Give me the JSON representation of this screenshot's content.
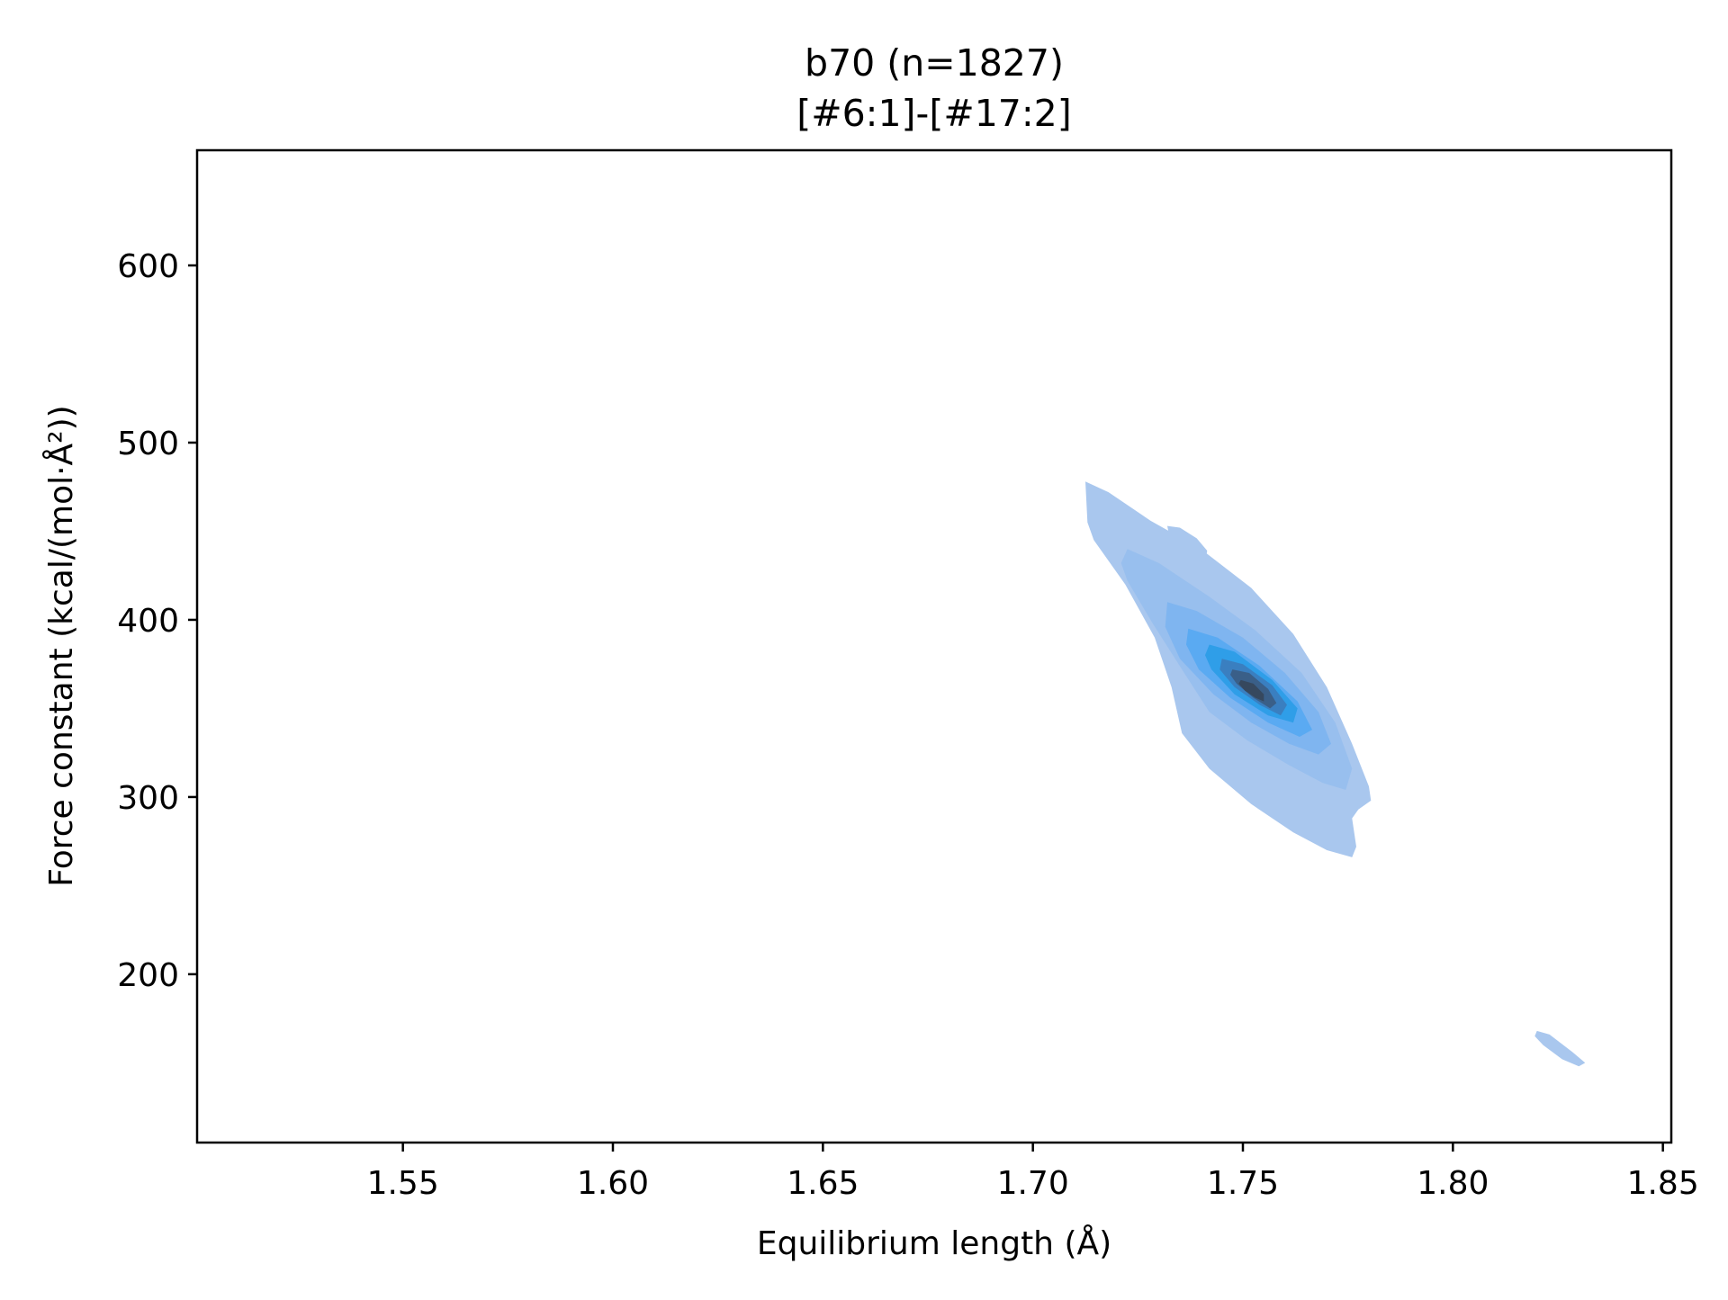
{
  "chart_data": {
    "type": "kde-contour",
    "title": "b70 (n=1827)",
    "subtitle": "[#6:1]-[#17:2]",
    "xlabel": "Equilibrium length (Å)",
    "ylabel": "Force constant (kcal/(mol·Å²))",
    "xlim": [
      1.501,
      1.852
    ],
    "ylim": [
      105,
      665
    ],
    "x_ticks": [
      {
        "value": 1.55,
        "label": "1.55"
      },
      {
        "value": 1.6,
        "label": "1.60"
      },
      {
        "value": 1.65,
        "label": "1.65"
      },
      {
        "value": 1.7,
        "label": "1.70"
      },
      {
        "value": 1.75,
        "label": "1.75"
      },
      {
        "value": 1.8,
        "label": "1.80"
      },
      {
        "value": 1.85,
        "label": "1.85"
      }
    ],
    "y_ticks": [
      {
        "value": 200,
        "label": "200"
      },
      {
        "value": 300,
        "label": "300"
      },
      {
        "value": 400,
        "label": "400"
      },
      {
        "value": 500,
        "label": "500"
      },
      {
        "value": 600,
        "label": "600"
      }
    ],
    "grid": false,
    "legend": "none",
    "peak": {
      "x": 1.752,
      "y": 362
    },
    "colors": {
      "level_1": "#a9c7ee",
      "level_2": "#98bfee",
      "level_3": "#7fb5f0",
      "level_4": "#5aaaf2",
      "level_5": "#2f9ee8",
      "level_6": "#3a7fc0",
      "level_7": "#3a5f88",
      "level_8": "#36485e"
    },
    "contours": [
      {
        "name": "main-cluster-outer",
        "level": 1,
        "points": [
          [
            1.7125,
            478
          ],
          [
            1.718,
            472
          ],
          [
            1.728,
            456
          ],
          [
            1.74,
            440
          ],
          [
            1.752,
            418
          ],
          [
            1.762,
            392
          ],
          [
            1.77,
            362
          ],
          [
            1.776,
            330
          ],
          [
            1.78,
            306
          ],
          [
            1.7805,
            298
          ],
          [
            1.7775,
            293
          ],
          [
            1.776,
            288
          ],
          [
            1.777,
            272
          ],
          [
            1.776,
            266
          ],
          [
            1.77,
            270
          ],
          [
            1.762,
            280
          ],
          [
            1.752,
            296
          ],
          [
            1.742,
            316
          ],
          [
            1.7355,
            336
          ],
          [
            1.733,
            362
          ],
          [
            1.729,
            390
          ],
          [
            1.722,
            420
          ],
          [
            1.7145,
            445
          ],
          [
            1.713,
            455
          ],
          [
            1.7125,
            478
          ]
        ]
      },
      {
        "name": "upper-blob",
        "level": 1,
        "points": [
          [
            1.732,
            453
          ],
          [
            1.735,
            452
          ],
          [
            1.739,
            446
          ],
          [
            1.7415,
            439
          ],
          [
            1.741,
            432
          ],
          [
            1.7385,
            434
          ],
          [
            1.735,
            441
          ],
          [
            1.7325,
            447
          ],
          [
            1.732,
            453
          ]
        ]
      },
      {
        "name": "lower-right-blob",
        "level": 1,
        "points": [
          [
            1.82,
            168
          ],
          [
            1.823,
            166
          ],
          [
            1.8285,
            156
          ],
          [
            1.8315,
            150
          ],
          [
            1.83,
            148
          ],
          [
            1.826,
            152
          ],
          [
            1.8215,
            160
          ],
          [
            1.8195,
            165
          ],
          [
            1.82,
            168
          ]
        ]
      },
      {
        "name": "main-cluster-level-2",
        "level": 2,
        "points": [
          [
            1.7225,
            440
          ],
          [
            1.73,
            432
          ],
          [
            1.742,
            413
          ],
          [
            1.753,
            394
          ],
          [
            1.764,
            370
          ],
          [
            1.772,
            342
          ],
          [
            1.776,
            316
          ],
          [
            1.7745,
            304
          ],
          [
            1.769,
            308
          ],
          [
            1.761,
            318
          ],
          [
            1.751,
            332
          ],
          [
            1.742,
            348
          ],
          [
            1.7355,
            372
          ],
          [
            1.7285,
            398
          ],
          [
            1.7225,
            422
          ],
          [
            1.721,
            432
          ],
          [
            1.7225,
            440
          ]
        ]
      },
      {
        "name": "main-cluster-level-3",
        "level": 3,
        "points": [
          [
            1.732,
            410
          ],
          [
            1.739,
            405
          ],
          [
            1.75,
            390
          ],
          [
            1.76,
            370
          ],
          [
            1.768,
            348
          ],
          [
            1.771,
            330
          ],
          [
            1.768,
            324
          ],
          [
            1.761,
            330
          ],
          [
            1.752,
            342
          ],
          [
            1.743,
            358
          ],
          [
            1.735,
            378
          ],
          [
            1.7315,
            396
          ],
          [
            1.732,
            410
          ]
        ]
      },
      {
        "name": "main-cluster-level-4",
        "level": 4,
        "points": [
          [
            1.737,
            395
          ],
          [
            1.744,
            390
          ],
          [
            1.754,
            374
          ],
          [
            1.763,
            354
          ],
          [
            1.7665,
            338
          ],
          [
            1.7635,
            334
          ],
          [
            1.756,
            342
          ],
          [
            1.747,
            356
          ],
          [
            1.7395,
            372
          ],
          [
            1.7365,
            386
          ],
          [
            1.737,
            395
          ]
        ]
      },
      {
        "name": "main-cluster-level-5",
        "level": 5,
        "points": [
          [
            1.742,
            386
          ],
          [
            1.748,
            382
          ],
          [
            1.757,
            366
          ],
          [
            1.763,
            350
          ],
          [
            1.762,
            342
          ],
          [
            1.756,
            346
          ],
          [
            1.748,
            358
          ],
          [
            1.7425,
            372
          ],
          [
            1.741,
            380
          ],
          [
            1.742,
            386
          ]
        ]
      },
      {
        "name": "main-cluster-level-6",
        "level": 6,
        "points": [
          [
            1.745,
            378
          ],
          [
            1.75,
            375
          ],
          [
            1.757,
            363
          ],
          [
            1.7605,
            352
          ],
          [
            1.759,
            346
          ],
          [
            1.754,
            352
          ],
          [
            1.748,
            362
          ],
          [
            1.7445,
            372
          ],
          [
            1.745,
            378
          ]
        ]
      },
      {
        "name": "main-cluster-level-7",
        "level": 7,
        "points": [
          [
            1.7475,
            372
          ],
          [
            1.7515,
            370
          ],
          [
            1.756,
            361
          ],
          [
            1.758,
            353
          ],
          [
            1.7565,
            350
          ],
          [
            1.7525,
            356
          ],
          [
            1.7485,
            364
          ],
          [
            1.747,
            369
          ],
          [
            1.7475,
            372
          ]
        ]
      },
      {
        "name": "main-cluster-level-8",
        "level": 8,
        "points": [
          [
            1.7495,
            366
          ],
          [
            1.7525,
            364
          ],
          [
            1.755,
            358
          ],
          [
            1.755,
            354
          ],
          [
            1.753,
            356
          ],
          [
            1.7505,
            360
          ],
          [
            1.749,
            364
          ],
          [
            1.7495,
            366
          ]
        ]
      }
    ]
  }
}
